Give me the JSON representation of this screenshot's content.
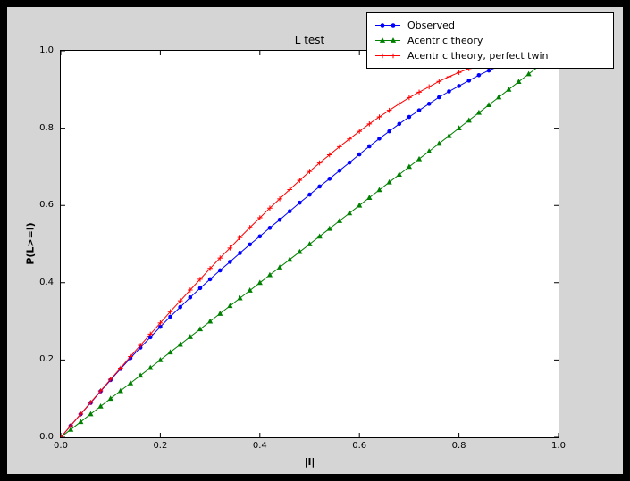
{
  "colors": {
    "frame": "#000000",
    "figure_background": "#d5d5d5",
    "axes_background": "#ffffff",
    "observed": "#0000ff",
    "acentric": "#008000",
    "perfect_twin": "#ff0000"
  },
  "chart_data": {
    "type": "line",
    "title": "L test",
    "xlabel": "|l|",
    "ylabel": "P(L>=l)",
    "xlim": [
      0,
      1
    ],
    "ylim": [
      0,
      1
    ],
    "xticks": [
      0,
      0.2,
      0.4,
      0.6,
      0.8,
      1.0
    ],
    "yticks": [
      0,
      0.2,
      0.4,
      0.6,
      0.8,
      1.0
    ],
    "grid": false,
    "legend_position": "upper right, overlapping top of axes",
    "x": [
      0,
      0.02,
      0.04,
      0.06,
      0.08,
      0.1,
      0.12,
      0.14,
      0.16,
      0.18,
      0.2,
      0.22,
      0.24,
      0.26,
      0.28,
      0.3,
      0.32,
      0.34,
      0.36,
      0.38,
      0.4,
      0.42,
      0.44,
      0.46,
      0.48,
      0.5,
      0.52,
      0.54,
      0.56,
      0.58,
      0.6,
      0.62,
      0.64,
      0.66,
      0.68,
      0.7,
      0.72,
      0.74,
      0.76,
      0.78,
      0.8,
      0.82,
      0.84,
      0.86,
      0.88,
      0.9,
      0.92,
      0.94,
      0.96
    ],
    "series": [
      {
        "name": "Observed",
        "color": "#0000ff",
        "marker": "circle",
        "y": [
          0.0,
          0.03,
          0.06,
          0.089,
          0.119,
          0.148,
          0.177,
          0.205,
          0.232,
          0.259,
          0.286,
          0.312,
          0.337,
          0.362,
          0.386,
          0.409,
          0.432,
          0.454,
          0.477,
          0.499,
          0.52,
          0.542,
          0.563,
          0.585,
          0.607,
          0.628,
          0.649,
          0.669,
          0.69,
          0.711,
          0.732,
          0.753,
          0.773,
          0.792,
          0.811,
          0.829,
          0.846,
          0.863,
          0.88,
          0.895,
          0.909,
          0.923,
          0.937,
          0.949,
          0.96,
          0.97,
          0.981,
          0.988,
          0.994
        ]
      },
      {
        "name": "Acentric theory",
        "color": "#008000",
        "marker": "triangle-up",
        "y": [
          0,
          0.02,
          0.04,
          0.06,
          0.08,
          0.1,
          0.12,
          0.14,
          0.16,
          0.18,
          0.2,
          0.22,
          0.24,
          0.26,
          0.28,
          0.3,
          0.32,
          0.34,
          0.36,
          0.38,
          0.4,
          0.42,
          0.44,
          0.46,
          0.48,
          0.5,
          0.52,
          0.54,
          0.56,
          0.58,
          0.6,
          0.62,
          0.64,
          0.66,
          0.68,
          0.7,
          0.72,
          0.74,
          0.76,
          0.78,
          0.8,
          0.82,
          0.84,
          0.86,
          0.88,
          0.9,
          0.92,
          0.94,
          0.96
        ]
      },
      {
        "name": "Acentric theory, perfect twin",
        "color": "#ff0000",
        "marker": "plus",
        "y": [
          0.0,
          0.03,
          0.06,
          0.09,
          0.12,
          0.15,
          0.179,
          0.209,
          0.238,
          0.267,
          0.296,
          0.325,
          0.353,
          0.381,
          0.409,
          0.437,
          0.464,
          0.49,
          0.517,
          0.543,
          0.568,
          0.593,
          0.617,
          0.641,
          0.665,
          0.688,
          0.71,
          0.731,
          0.752,
          0.772,
          0.792,
          0.811,
          0.829,
          0.846,
          0.863,
          0.879,
          0.893,
          0.907,
          0.921,
          0.933,
          0.944,
          0.954,
          0.964,
          0.972,
          0.979,
          0.986,
          0.991,
          0.995,
          0.998
        ]
      }
    ]
  }
}
